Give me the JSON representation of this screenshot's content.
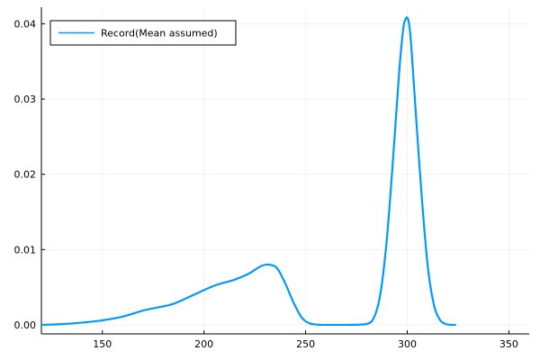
{
  "chart_data": {
    "type": "line",
    "title": "",
    "xlabel": "",
    "ylabel": "",
    "xlim": [
      120,
      360
    ],
    "ylim": [
      -0.0012,
      0.0422
    ],
    "x_ticks": [
      150,
      200,
      250,
      300,
      350
    ],
    "x_tick_labels": [
      "150",
      "200",
      "250",
      "300",
      "350"
    ],
    "y_ticks": [
      0.0,
      0.01,
      0.02,
      0.03,
      0.04
    ],
    "y_tick_labels": [
      "0.00",
      "0.01",
      "0.02",
      "0.03",
      "0.04"
    ],
    "grid": true,
    "legend_position": "top-left",
    "series": [
      {
        "name": "Record(Mean assumed)",
        "color": "#009AFA",
        "x": [
          120,
          130,
          140,
          150,
          160,
          170,
          175,
          185,
          195,
          205,
          215,
          222,
          228,
          232,
          236,
          240,
          244,
          248,
          252,
          258,
          270,
          280,
          284,
          287,
          290,
          293,
          296,
          298,
          299,
          300,
          301,
          302,
          304,
          307,
          310,
          313,
          316,
          319,
          322,
          324
        ],
        "y": [
          0.0,
          0.0001,
          0.0003,
          0.0006,
          0.0011,
          0.0019,
          0.0022,
          0.0028,
          0.004,
          0.0052,
          0.006,
          0.0068,
          0.0078,
          0.008,
          0.0075,
          0.0055,
          0.003,
          0.001,
          0.0002,
          0.0,
          0.0,
          0.0001,
          0.0012,
          0.0045,
          0.0115,
          0.022,
          0.0335,
          0.0393,
          0.0405,
          0.0408,
          0.0398,
          0.037,
          0.029,
          0.0175,
          0.008,
          0.0028,
          0.0007,
          0.0001,
          0.0,
          0.0
        ]
      }
    ]
  }
}
